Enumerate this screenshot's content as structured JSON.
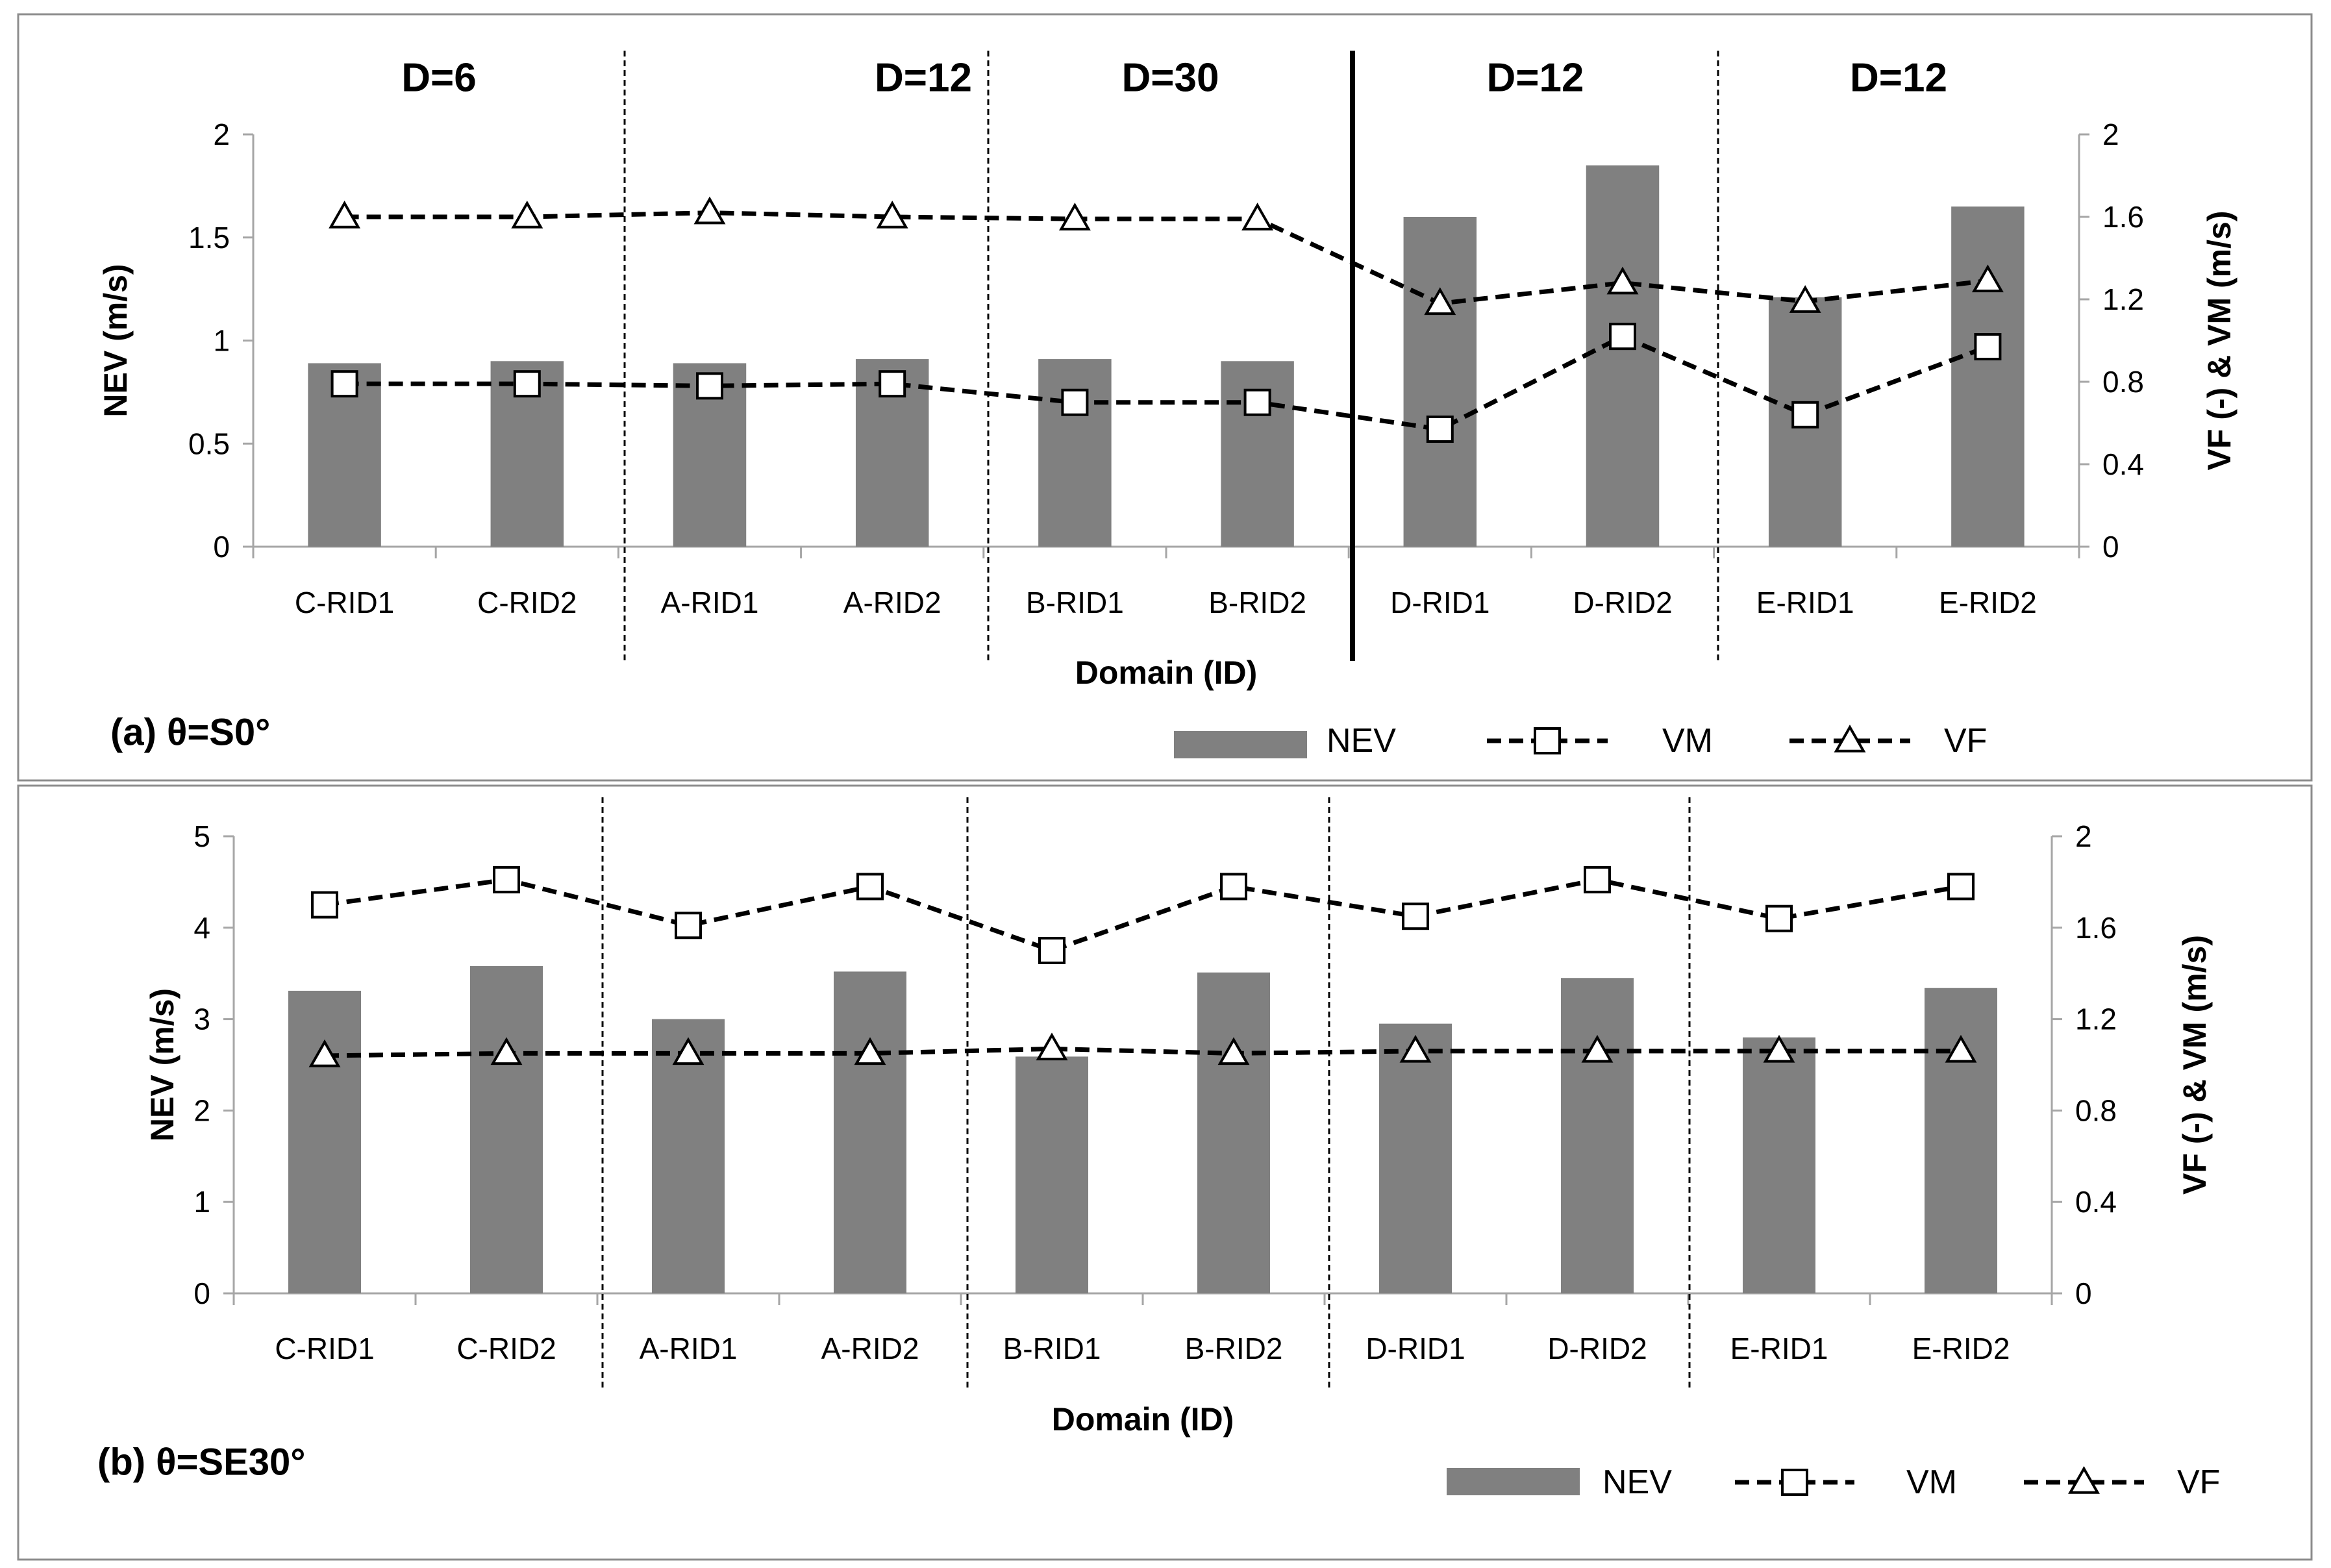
{
  "colors": {
    "bar": "#808080",
    "axis": "#a6a6a6",
    "line": "#000000",
    "frame": "#8c8c8c",
    "text": "#000000"
  },
  "chart_data": [
    {
      "type": "bar",
      "panel_label": "(a) θ=S0°",
      "categories": [
        "C-RID1",
        "C-RID2",
        "A-RID1",
        "A-RID2",
        "B-RID1",
        "B-RID2",
        "D-RID1",
        "D-RID2",
        "E-RID1",
        "E-RID2"
      ],
      "xlabel": "Domain (ID)",
      "ylabel": "NEV (m/s)",
      "y2label": "VF (-) & VM (m/s)",
      "ylim": [
        0,
        2
      ],
      "yticks": [
        "0",
        "0.5",
        "1",
        "1.5",
        "2"
      ],
      "y2lim": [
        0,
        2
      ],
      "y2ticks": [
        "0",
        "0.4",
        "0.8",
        "1.2",
        "1.6",
        "2"
      ],
      "group_headers": [
        "D=6",
        "D=12",
        "D=30",
        "D=12",
        "D=12"
      ],
      "series": [
        {
          "name": "NEV",
          "kind": "bar",
          "axis": "left",
          "values": [
            0.89,
            0.9,
            0.89,
            0.91,
            0.91,
            0.9,
            1.6,
            1.85,
            1.21,
            1.65
          ]
        },
        {
          "name": "VM",
          "kind": "line",
          "marker": "square",
          "axis": "right",
          "values": [
            0.79,
            0.79,
            0.78,
            0.79,
            0.7,
            0.7,
            0.57,
            1.02,
            0.64,
            0.97
          ]
        },
        {
          "name": "VF",
          "kind": "line",
          "marker": "triangle",
          "axis": "right",
          "values": [
            1.6,
            1.6,
            1.62,
            1.6,
            1.59,
            1.59,
            1.18,
            1.28,
            1.19,
            1.29
          ]
        }
      ],
      "legend": [
        "NEV",
        "VM",
        "VF"
      ]
    },
    {
      "type": "bar",
      "panel_label": "(b) θ=SE30°",
      "categories": [
        "C-RID1",
        "C-RID2",
        "A-RID1",
        "A-RID2",
        "B-RID1",
        "B-RID2",
        "D-RID1",
        "D-RID2",
        "E-RID1",
        "E-RID2"
      ],
      "xlabel": "Domain (ID)",
      "ylabel": "NEV (m/s)",
      "y2label": "VF (-) & VM (m/s)",
      "ylim": [
        0,
        5
      ],
      "yticks": [
        "0",
        "1",
        "2",
        "3",
        "4",
        "5"
      ],
      "y2lim": [
        0,
        2
      ],
      "y2ticks": [
        "0",
        "0.4",
        "0.8",
        "1.2",
        "1.6",
        "2"
      ],
      "series": [
        {
          "name": "NEV",
          "kind": "bar",
          "axis": "left",
          "values": [
            3.31,
            3.58,
            3.0,
            3.52,
            2.59,
            3.51,
            2.95,
            3.45,
            2.8,
            3.34
          ]
        },
        {
          "name": "VM",
          "kind": "line",
          "marker": "square",
          "axis": "right",
          "values": [
            1.7,
            1.81,
            1.61,
            1.78,
            1.5,
            1.78,
            1.65,
            1.81,
            1.64,
            1.78
          ]
        },
        {
          "name": "VF",
          "kind": "line",
          "marker": "triangle",
          "axis": "right",
          "values": [
            1.04,
            1.05,
            1.05,
            1.05,
            1.07,
            1.05,
            1.06,
            1.06,
            1.06,
            1.06
          ]
        }
      ],
      "legend": [
        "NEV",
        "VM",
        "VF"
      ]
    }
  ]
}
